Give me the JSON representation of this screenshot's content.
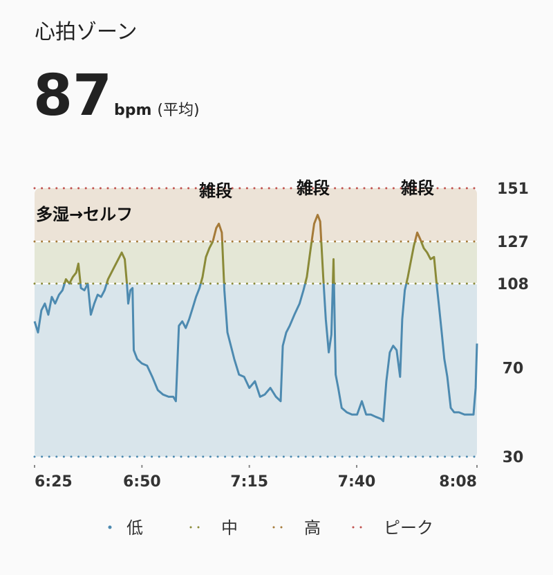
{
  "header": {
    "title": "心拍ゾーン",
    "value": "87",
    "unit": "bpm",
    "unit_note": "(平均)"
  },
  "chart_data": {
    "type": "line",
    "xlim": [
      385,
      488
    ],
    "xticks": [
      {
        "value": 385,
        "label": "6:25"
      },
      {
        "value": 410,
        "label": "6:50"
      },
      {
        "value": 435,
        "label": "7:15"
      },
      {
        "value": 460,
        "label": "7:40"
      },
      {
        "value": 488,
        "label": "8:08"
      }
    ],
    "ylim": [
      30,
      151
    ],
    "yticks": [
      30,
      70,
      108,
      127,
      151
    ],
    "zones": [
      {
        "name": "低",
        "from": 30,
        "color": "#4d8ab0",
        "band_color": "#d9e5eb"
      },
      {
        "name": "中",
        "from": 108,
        "color": "#8a8a38",
        "band_color": "#e4e7d6"
      },
      {
        "name": "高",
        "from": 127,
        "color": "#a57a38",
        "band_color": "#ece3d7"
      },
      {
        "name": "ピーク",
        "from": 151,
        "color": "#c0504d",
        "band_color": "#f0dcdc"
      }
    ],
    "annotations": [
      "多湿→セルフ",
      "雑段",
      "雑段",
      "雑段"
    ],
    "series": [
      {
        "x": [
          385,
          385.8,
          386.6,
          387.4,
          388.2,
          389,
          389.8,
          390.7,
          391.5,
          392.3,
          393.1,
          393.9,
          394.7,
          395.2,
          395.8,
          396.6,
          397.4,
          398.1,
          398.9,
          399.7,
          400.5,
          401.3,
          402.1,
          402.9,
          403.7,
          404.5,
          405.3,
          406,
          406.5,
          406.8,
          407.3,
          407.8,
          408.1,
          408.9,
          410,
          411.2,
          412.4,
          413.7,
          414.9,
          416.2,
          417.3,
          417.9,
          418.6,
          419.4,
          420.2,
          421,
          421.8,
          422.6,
          423.4,
          424.1,
          424.9,
          425.7,
          426.5,
          427.3,
          427.9,
          428.6,
          429.2,
          429.9,
          430.7,
          431.5,
          432.6,
          433.8,
          435,
          436.3,
          437.5,
          438.6,
          439.9,
          441.2,
          442.3,
          442.8,
          443.6,
          444.4,
          445.5,
          446.7,
          447.6,
          448.4,
          449.3,
          450.1,
          450.9,
          451.5,
          452.2,
          452.8,
          453.5,
          454.1,
          454.6,
          455.1,
          455.7,
          456.5,
          457.7,
          458.9,
          460.1,
          461.2,
          462.2,
          463.3,
          464.4,
          465.7,
          466.2,
          466.9,
          467.7,
          468.5,
          469.3,
          470.1,
          470.6,
          471.2,
          471.9,
          472.5,
          473.3,
          474.1,
          474.8,
          475.6,
          476.4,
          477.2,
          478,
          478.6,
          479.1,
          479.8,
          480.4,
          481.1,
          481.9,
          482.7,
          483.8,
          485.1,
          486.4,
          487.2,
          487.7,
          488
        ],
        "values": [
          91,
          86,
          96,
          99,
          94,
          102,
          99,
          103,
          105,
          110,
          108,
          111,
          113,
          117,
          106,
          105,
          108,
          94,
          99,
          103,
          102,
          105,
          110,
          113,
          116,
          119,
          122,
          119,
          108,
          99,
          105,
          106,
          78,
          74,
          72,
          71,
          66,
          60,
          58,
          57,
          57,
          55,
          89,
          91,
          88,
          92,
          97,
          102,
          106,
          111,
          120,
          124,
          127,
          133,
          135,
          131,
          105,
          86,
          80,
          74,
          67,
          66,
          61,
          64,
          57,
          58,
          61,
          57,
          55,
          80,
          86,
          89,
          94,
          99,
          105,
          111,
          124,
          135,
          139,
          136,
          111,
          92,
          77,
          85,
          119,
          67,
          61,
          52,
          50,
          49,
          49,
          55,
          49,
          49,
          48,
          47,
          46,
          64,
          77,
          80,
          78,
          66,
          92,
          105,
          111,
          117,
          125,
          131,
          128,
          124,
          122,
          119,
          120,
          108,
          99,
          86,
          74,
          66,
          52,
          50,
          50,
          49,
          49,
          49,
          61,
          81
        ]
      }
    ]
  }
}
